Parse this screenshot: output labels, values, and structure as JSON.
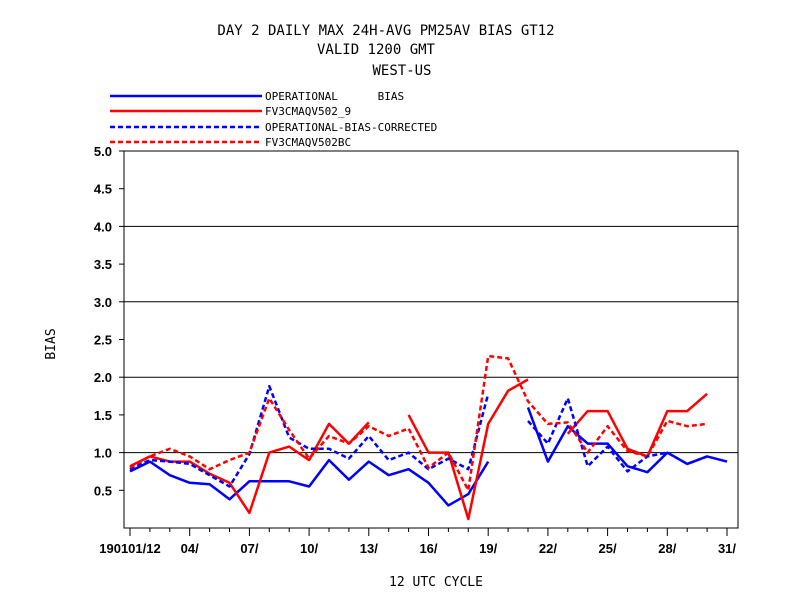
{
  "chart_data": {
    "type": "line",
    "title_lines": [
      "DAY 2 DAILY MAX   24H-AVG PM25AV BIAS GT12",
      "VALID 1200 GMT",
      "WEST-US"
    ],
    "xlabel": "12 UTC CYCLE",
    "ylabel": "BIAS",
    "ylim": [
      0.0,
      5.0
    ],
    "yticks": [
      "0.5",
      "1.0",
      "1.5",
      "2.0",
      "2.5",
      "3.0",
      "3.5",
      "4.0",
      "4.5",
      "5.0"
    ],
    "ytick_values": [
      0.5,
      1.0,
      1.5,
      2.0,
      2.5,
      3.0,
      3.5,
      4.0,
      4.5,
      5.0
    ],
    "grid_lines": [
      1.0,
      2.0,
      3.0,
      4.0
    ],
    "x_range": [
      1,
      31
    ],
    "x_tick_days": [
      1,
      4,
      7,
      10,
      13,
      16,
      19,
      22,
      25,
      28,
      31
    ],
    "x_tick_labels": [
      "190101/12",
      "04/",
      "07/",
      "10/",
      "13/",
      "16/",
      "19/",
      "22/",
      "25/",
      "28/",
      "31/"
    ],
    "legend_position": "top-left",
    "series": [
      {
        "name": "OPERATIONAL      BIAS",
        "color": "#0000ff",
        "dash": "solid",
        "x": [
          1,
          2,
          3,
          4,
          5,
          6,
          7,
          8,
          9,
          10,
          11,
          12,
          13,
          14,
          15,
          16,
          17,
          18,
          19,
          null,
          21,
          22,
          23,
          24,
          25,
          26,
          27,
          28,
          29,
          30,
          31
        ],
        "values": [
          0.75,
          0.88,
          0.7,
          0.6,
          0.58,
          0.38,
          0.62,
          0.62,
          0.62,
          0.55,
          0.9,
          0.64,
          0.88,
          0.7,
          0.78,
          0.6,
          0.3,
          0.45,
          0.88,
          null,
          1.6,
          0.88,
          1.35,
          1.12,
          1.12,
          0.82,
          0.74,
          1.0,
          0.85,
          0.95,
          0.88
        ]
      },
      {
        "name": "FV3CMAQV502_9",
        "color": "#ff0000",
        "dash": "solid",
        "x": [
          1,
          2,
          3,
          4,
          5,
          6,
          7,
          8,
          9,
          10,
          11,
          12,
          13,
          14,
          15,
          16,
          17,
          18,
          19,
          20,
          21,
          null,
          23,
          24,
          25,
          26,
          27,
          28,
          29,
          30
        ],
        "values": [
          0.82,
          0.95,
          0.88,
          0.88,
          0.72,
          0.6,
          0.2,
          1.0,
          1.08,
          0.9,
          1.38,
          1.12,
          1.4,
          null,
          1.5,
          1.0,
          1.0,
          0.12,
          1.38,
          1.82,
          1.97,
          null,
          1.25,
          1.55,
          1.55,
          1.05,
          0.95,
          1.55,
          1.55,
          1.78
        ]
      },
      {
        "name": "OPERATIONAL-BIAS-CORRECTED",
        "color": "#0000ff",
        "dash": "dashed",
        "x": [
          1,
          2,
          3,
          4,
          5,
          6,
          7,
          8,
          9,
          10,
          11,
          12,
          13,
          14,
          15,
          16,
          17,
          18,
          19,
          null,
          21,
          22,
          23,
          24,
          25,
          26,
          27,
          28,
          29,
          30
        ],
        "values": [
          0.78,
          0.9,
          0.88,
          0.85,
          0.7,
          0.55,
          0.98,
          1.88,
          1.2,
          1.05,
          1.05,
          0.92,
          1.22,
          0.9,
          1.0,
          0.78,
          0.92,
          0.78,
          1.78,
          null,
          1.42,
          1.12,
          1.72,
          0.82,
          1.08,
          0.75,
          0.95,
          1.0,
          0.85,
          0.95
        ]
      },
      {
        "name": "FV3CMAQV502BC",
        "color": "#ff0000",
        "dash": "dashed",
        "x": [
          1,
          2,
          3,
          4,
          5,
          6,
          7,
          8,
          9,
          10,
          11,
          12,
          13,
          14,
          15,
          16,
          17,
          18,
          19,
          20,
          21,
          22,
          23,
          24,
          25,
          26,
          27,
          28,
          29,
          30
        ],
        "values": [
          0.8,
          0.95,
          1.05,
          0.95,
          0.78,
          0.9,
          1.0,
          1.72,
          1.3,
          0.92,
          1.22,
          1.12,
          1.35,
          1.22,
          1.32,
          0.8,
          1.0,
          0.5,
          2.28,
          2.25,
          1.68,
          1.38,
          1.4,
          1.0,
          1.35,
          1.02,
          0.95,
          1.42,
          1.35,
          1.38
        ]
      }
    ]
  }
}
